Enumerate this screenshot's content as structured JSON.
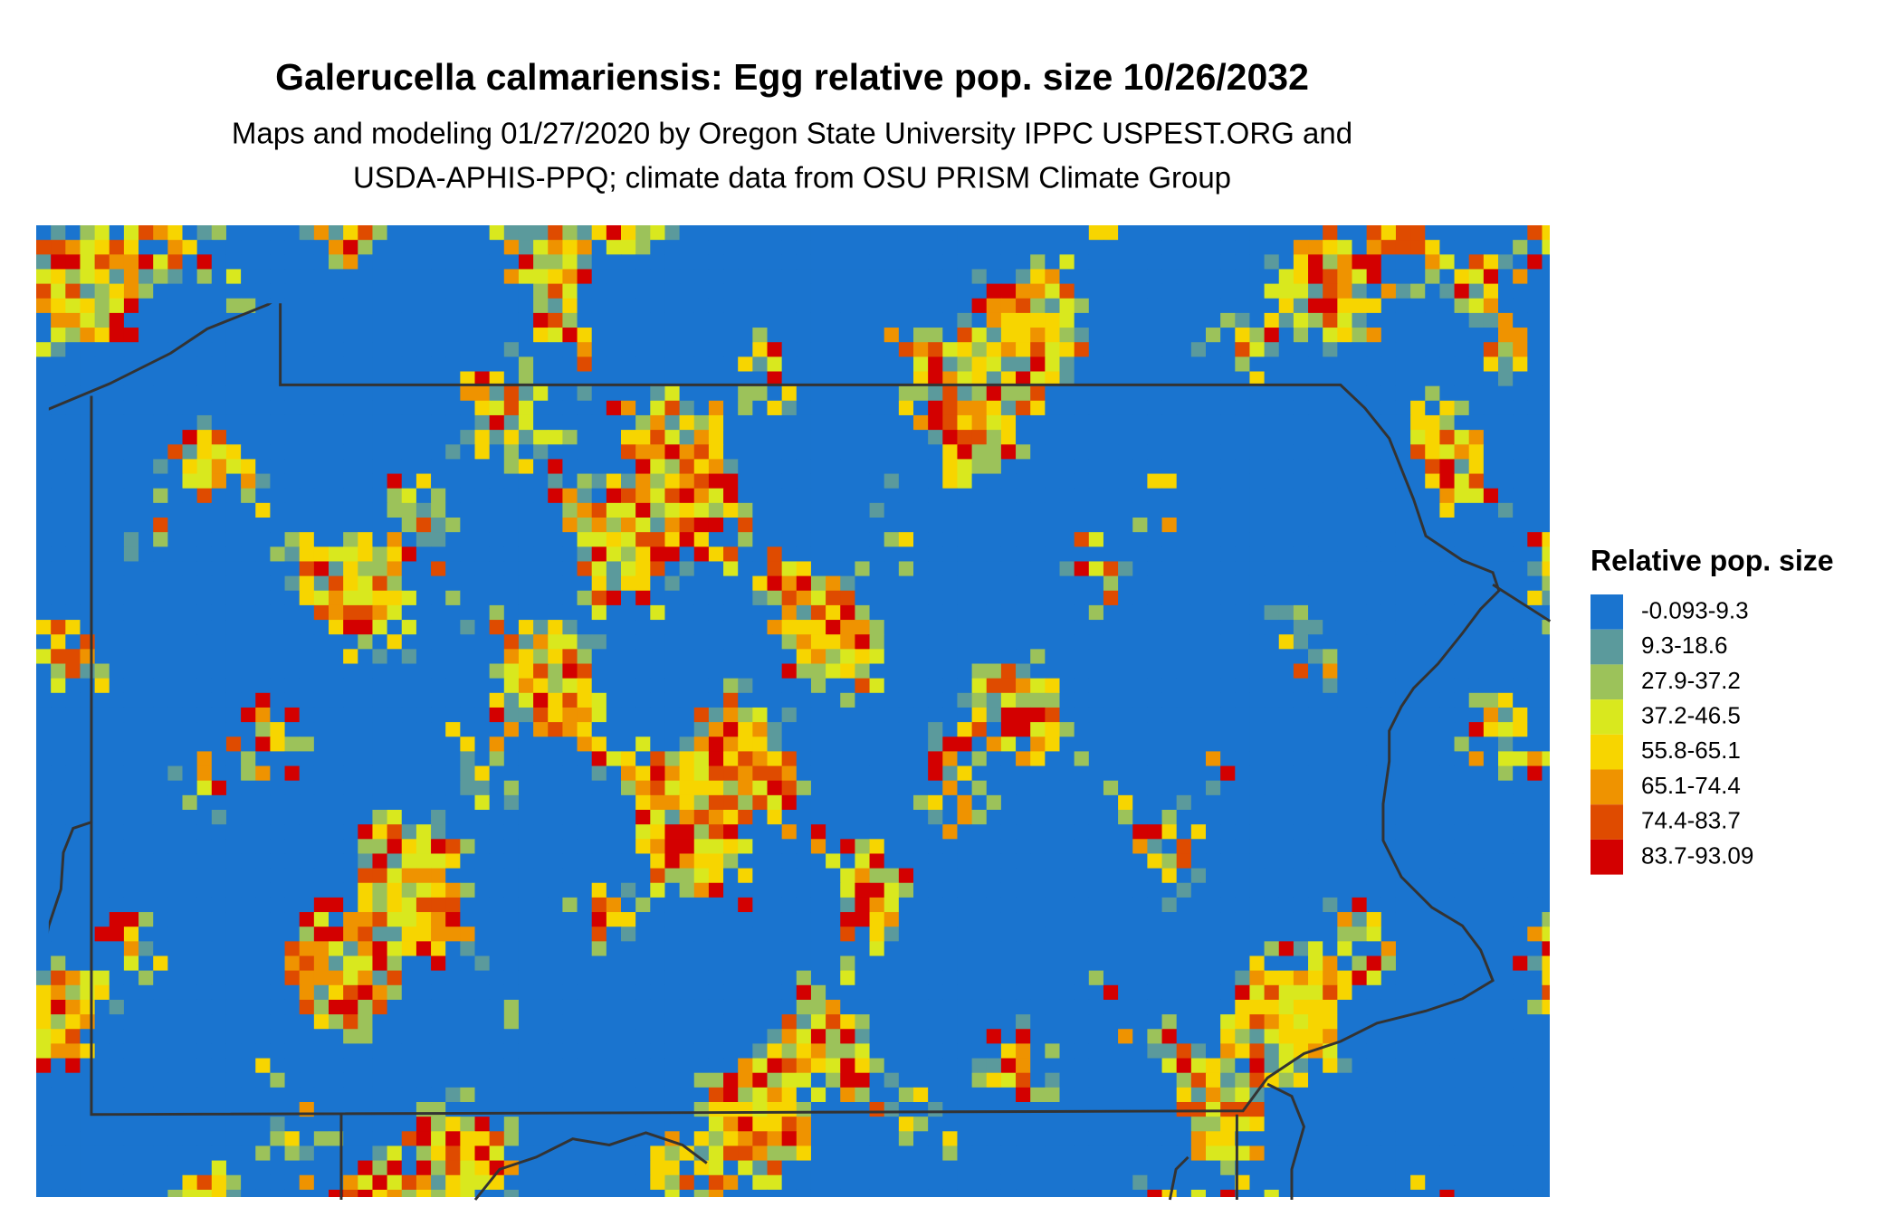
{
  "title": "Galerucella calmariensis: Egg relative pop. size 10/26/2032",
  "subtitle": [
    "Maps and modeling 01/27/2020 by Oregon State University IPPC USPEST.ORG and",
    "USDA-APHIS-PPQ; climate data from OSU PRISM Climate Group"
  ],
  "legend": {
    "title": "Relative pop. size",
    "items": [
      {
        "label": "-0.093-9.3",
        "color": "#1a74cf"
      },
      {
        "label": "9.3-18.6",
        "color": "#5b9a9c"
      },
      {
        "label": "27.9-37.2",
        "color": "#9cc25a"
      },
      {
        "label": "37.2-46.5",
        "color": "#d9e81e"
      },
      {
        "label": "55.8-65.1",
        "color": "#f7d500"
      },
      {
        "label": "65.1-74.4",
        "color": "#ef9300"
      },
      {
        "label": "74.4-83.7",
        "color": "#df4b00"
      },
      {
        "label": "83.7-93.09",
        "color": "#d30000"
      }
    ]
  }
}
